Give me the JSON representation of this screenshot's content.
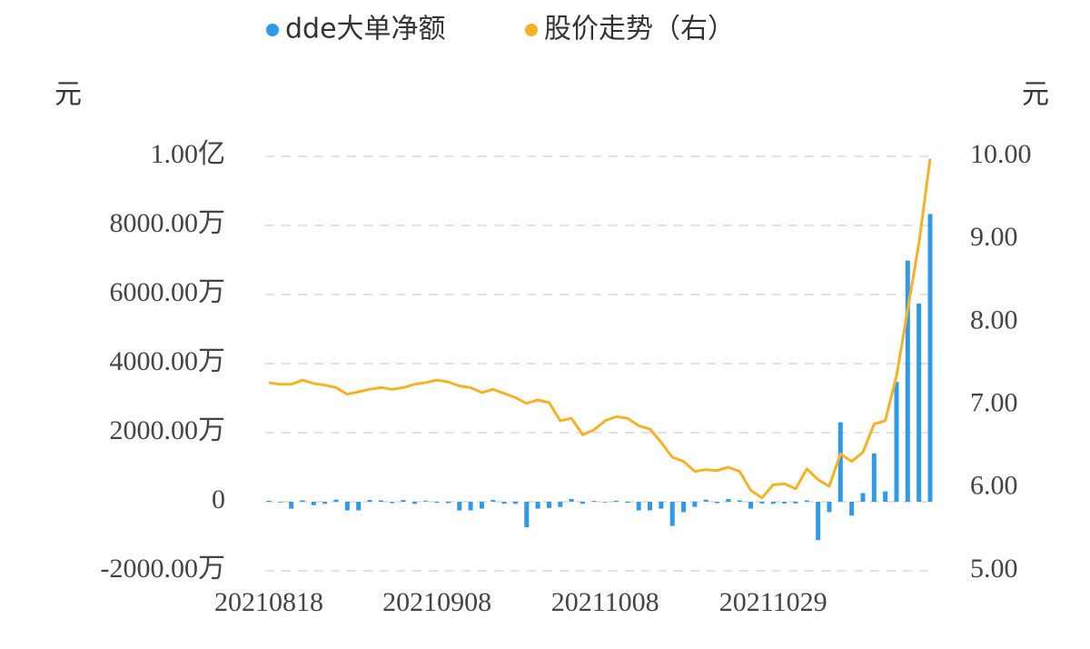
{
  "chart_data": {
    "type": "bar-line",
    "y_unit": "元",
    "y2_unit": "元",
    "categories": [
      "20210818",
      null,
      null,
      null,
      null,
      null,
      null,
      null,
      null,
      null,
      null,
      null,
      null,
      null,
      null,
      "20210908",
      null,
      null,
      null,
      null,
      null,
      null,
      null,
      null,
      null,
      null,
      null,
      null,
      null,
      null,
      "20211008",
      null,
      null,
      null,
      null,
      null,
      null,
      null,
      null,
      null,
      null,
      null,
      null,
      null,
      null,
      "20211029",
      null,
      null,
      null,
      null,
      null,
      null,
      null,
      null,
      null,
      null,
      null,
      null,
      null,
      null
    ],
    "series": [
      {
        "name": "dde大单净额",
        "type": "bar",
        "color": "#2f9be8",
        "values": [
          300000,
          -200000,
          -2000000,
          400000,
          -1000000,
          -600000,
          600000,
          -2500000,
          -2500000,
          500000,
          400000,
          -400000,
          500000,
          -600000,
          300000,
          -300000,
          -400000,
          -2500000,
          -2500000,
          -2000000,
          500000,
          -600000,
          -600000,
          -7400000,
          -2000000,
          -1800000,
          -1500000,
          800000,
          -600000,
          200000,
          -200000,
          300000,
          -300000,
          -2500000,
          -2500000,
          -2000000,
          -7000000,
          -3000000,
          -1500000,
          600000,
          -400000,
          800000,
          400000,
          -2000000,
          -500000,
          -600000,
          -500000,
          -500000,
          400000,
          -11100000,
          -3000000,
          23000000,
          -4000000,
          2500000,
          14000000,
          3000000,
          34700000,
          69800000,
          57400000,
          83300000
        ]
      },
      {
        "name": "股价走势（右）",
        "type": "line",
        "axis": "y2",
        "color": "#f5b225",
        "values": [
          7.27,
          7.25,
          7.25,
          7.3,
          7.26,
          7.24,
          7.21,
          7.13,
          7.16,
          7.19,
          7.21,
          7.19,
          7.21,
          7.25,
          7.27,
          7.3,
          7.28,
          7.23,
          7.21,
          7.15,
          7.19,
          7.14,
          7.09,
          7.02,
          7.06,
          7.03,
          6.81,
          6.84,
          6.64,
          6.7,
          6.81,
          6.86,
          6.84,
          6.75,
          6.71,
          6.55,
          6.37,
          6.32,
          6.2,
          6.22,
          6.21,
          6.25,
          6.2,
          5.97,
          5.88,
          6.04,
          6.05,
          5.99,
          6.23,
          6.1,
          6.02,
          6.41,
          6.32,
          6.43,
          6.77,
          6.81,
          7.35,
          8.15,
          8.95,
          9.97
        ]
      }
    ],
    "ylim": [
      -20000000,
      100000000
    ],
    "yticks": [
      {
        "value": -20000000,
        "label": "-2000.00万"
      },
      0,
      {
        "value": 20000000,
        "label": "2000.00万"
      },
      {
        "value": 40000000,
        "label": "4000.00万"
      },
      {
        "value": 60000000,
        "label": "6000.00万"
      },
      {
        "value": 80000000,
        "label": "8000.00万"
      },
      {
        "value": 100000000,
        "label": "1.00亿"
      }
    ],
    "y2lim": [
      5,
      10
    ],
    "y2ticks": [
      {
        "value": 5,
        "label": "5.00"
      },
      {
        "value": 6,
        "label": "6.00"
      },
      {
        "value": 7,
        "label": "7.00"
      },
      {
        "value": 8,
        "label": "8.00"
      },
      {
        "value": 9,
        "label": "9.00"
      },
      {
        "value": 10,
        "label": "10.00"
      }
    ],
    "grid": true,
    "legend": "top"
  }
}
